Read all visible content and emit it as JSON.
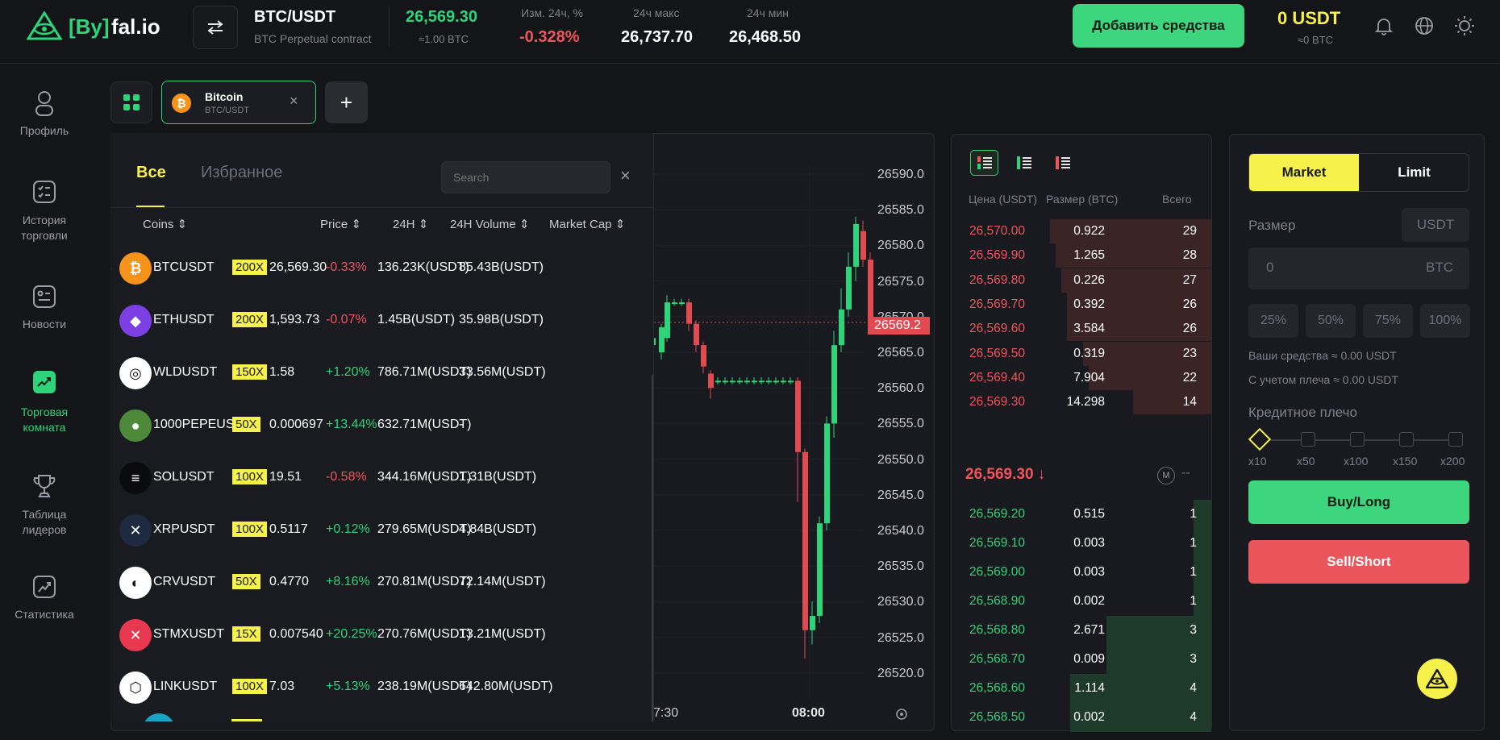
{
  "header": {
    "logo_bracket_text": "[By]",
    "logo_rest": "fal.io",
    "pair": "BTC/USDT",
    "contract": "BTC Perpetual contract",
    "last_price": "26,569.30",
    "last_price_sub": "≈1.00 BTC",
    "change_label": "Изм. 24ч, %",
    "change_value": "-0.328%",
    "high_label": "24ч макс",
    "high_value": "26,737.70",
    "low_label": "24ч мин",
    "low_value": "26,468.50",
    "add_funds": "Добавить средства",
    "balance": "0 USDT",
    "balance_sub": "≈0 BTC"
  },
  "sidebar": {
    "items": [
      {
        "label": "Профиль",
        "icon": "user-icon"
      },
      {
        "label": "История торговли",
        "icon": "history-icon"
      },
      {
        "label": "Новости",
        "icon": "news-icon"
      },
      {
        "label": "Торговая комната",
        "icon": "trading-room-icon"
      },
      {
        "label": "Таблица лидеров",
        "icon": "trophy-icon"
      },
      {
        "label": "Статистика",
        "icon": "stats-icon"
      }
    ]
  },
  "tabs": {
    "active_title": "Bitcoin",
    "active_sub": "BTC/USDT"
  },
  "coins": {
    "tab_all": "Все",
    "tab_fav": "Избранное",
    "search_placeholder": "Search",
    "headers": {
      "coins": "Coins",
      "price": "Price",
      "h24": "24H",
      "volume": "24H Volume",
      "mcap": "Market Cap"
    },
    "rows": [
      {
        "name": "BTCUSDT",
        "lev": "200X",
        "price": "26,569.30",
        "change": "-0.33%",
        "dir": "down",
        "volume": "136.23K(USDT)",
        "mcap": "85.43B(USDT)",
        "fav": true,
        "color": "#f7931a",
        "glyph": "₿"
      },
      {
        "name": "ETHUSDT",
        "lev": "200X",
        "price": "1,593.73",
        "change": "-0.07%",
        "dir": "down",
        "volume": "1.45B(USDT)",
        "mcap": "35.98B(USDT)",
        "fav": false,
        "color": "#7b3fe4",
        "glyph": "◆"
      },
      {
        "name": "WLDUSDT",
        "lev": "150X",
        "price": "1.58",
        "change": "+1.20%",
        "dir": "up",
        "volume": "786.71M(USDT)",
        "mcap": "33.56M(USDT)",
        "fav": false,
        "color": "#ffffff",
        "glyph": "◎"
      },
      {
        "name": "1000PEPEUSDT",
        "lev": "50X",
        "price": "0.000697",
        "change": "+13.44%",
        "dir": "up",
        "volume": "632.71M(USDT)",
        "mcap": "-",
        "fav": false,
        "color": "#4c8a3a",
        "glyph": "●"
      },
      {
        "name": "SOLUSDT",
        "lev": "100X",
        "price": "19.51",
        "change": "-0.58%",
        "dir": "down",
        "volume": "344.16M(USDT)",
        "mcap": "1.31B(USDT)",
        "fav": false,
        "color": "#0b0b0f",
        "glyph": "≡"
      },
      {
        "name": "XRPUSDT",
        "lev": "100X",
        "price": "0.5117",
        "change": "+0.12%",
        "dir": "up",
        "volume": "279.65M(USDT)",
        "mcap": "4.84B(USDT)",
        "fav": false,
        "color": "#1d2a40",
        "glyph": "✕"
      },
      {
        "name": "CRVUSDT",
        "lev": "50X",
        "price": "0.4770",
        "change": "+8.16%",
        "dir": "up",
        "volume": "270.81M(USDT)",
        "mcap": "72.14M(USDT)",
        "fav": false,
        "color": "#ffffff",
        "glyph": "◐"
      },
      {
        "name": "STMXUSDT",
        "lev": "15X",
        "price": "0.007540",
        "change": "+20.25%",
        "dir": "up",
        "volume": "270.76M(USDT)",
        "mcap": "13.21M(USDT)",
        "fav": false,
        "color": "#e8384f",
        "glyph": "✕"
      },
      {
        "name": "LINKUSDT",
        "lev": "100X",
        "price": "7.03",
        "change": "+5.13%",
        "dir": "up",
        "volume": "238.19M(USDT)",
        "mcap": "642.80M(USDT)",
        "fav": false,
        "color": "#ffffff",
        "glyph": "⬡"
      }
    ]
  },
  "chart": {
    "price_ticks": [
      "26590.0",
      "26585.0",
      "26580.0",
      "26575.0",
      "26570.0",
      "26565.0",
      "26560.0",
      "26555.0",
      "26550.0",
      "26545.0",
      "26540.0",
      "26535.0",
      "26530.0",
      "26525.0",
      "26520.0"
    ],
    "current_price_tag": "26569.2",
    "time_labels": [
      "7:30",
      "08:00"
    ]
  },
  "orderbook": {
    "col_price": "Цена (USDT)",
    "col_size": "Размер (BTC)",
    "col_total": "Всего",
    "asks": [
      {
        "price": "26,570.00",
        "size": "0.922",
        "total": "29"
      },
      {
        "price": "26,569.90",
        "size": "1.265",
        "total": "28"
      },
      {
        "price": "26,569.80",
        "size": "0.226",
        "total": "27"
      },
      {
        "price": "26,569.70",
        "size": "0.392",
        "total": "26"
      },
      {
        "price": "26,569.60",
        "size": "3.584",
        "total": "26"
      },
      {
        "price": "26,569.50",
        "size": "0.319",
        "total": "23"
      },
      {
        "price": "26,569.40",
        "size": "7.904",
        "total": "22"
      },
      {
        "price": "26,569.30",
        "size": "14.298",
        "total": "14"
      }
    ],
    "mid_price": "26,569.30 ↓",
    "mid_m": "M",
    "mid_dash": "--",
    "bids": [
      {
        "price": "26,569.20",
        "size": "0.515",
        "total": "1"
      },
      {
        "price": "26,569.10",
        "size": "0.003",
        "total": "1"
      },
      {
        "price": "26,569.00",
        "size": "0.003",
        "total": "1"
      },
      {
        "price": "26,568.90",
        "size": "0.002",
        "total": "1"
      },
      {
        "price": "26,568.80",
        "size": "2.671",
        "total": "3"
      },
      {
        "price": "26,568.70",
        "size": "0.009",
        "total": "3"
      },
      {
        "price": "26,568.60",
        "size": "1.114",
        "total": "4"
      },
      {
        "price": "26,568.50",
        "size": "0.002",
        "total": "4"
      }
    ]
  },
  "trade": {
    "market": "Market",
    "limit": "Limit",
    "size_label": "Размер",
    "size_unit": "USDT",
    "size_value": "0",
    "size_currency": "BTC",
    "pcts": [
      "25%",
      "50%",
      "75%",
      "100%"
    ],
    "funds": "Ваши средства ≈ 0.00 USDT",
    "funds_lev": "С учетом плеча ≈ 0.00 USDT",
    "leverage_label": "Кредитное плечо",
    "lev_marks": [
      "x10",
      "x50",
      "x100",
      "x150",
      "x200"
    ],
    "buy": "Buy/Long",
    "sell": "Sell/Short"
  }
}
